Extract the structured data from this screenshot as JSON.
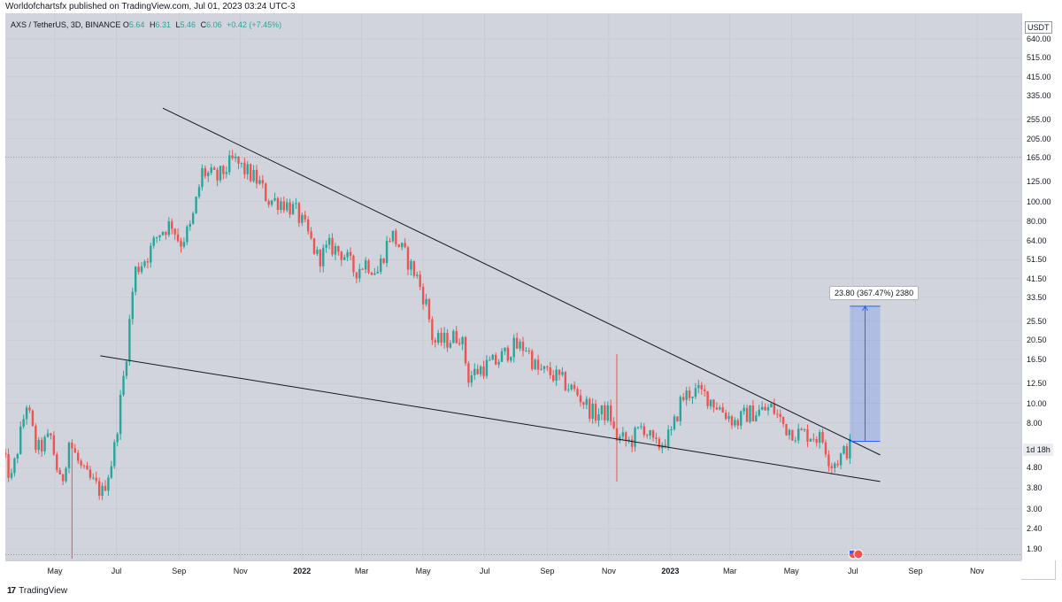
{
  "publish_line": "Worldofchartsfx published on TradingView.com, Jul 01, 2023 03:24 UTC-3",
  "brand": {
    "logo": "17",
    "name": "TradingView"
  },
  "legend": {
    "symbol": "AXS / TetherUS, 3D, BINANCE",
    "open_label": "O",
    "open": "5.64",
    "high_label": "H",
    "high": "6.31",
    "low_label": "L",
    "low": "5.46",
    "close_label": "C",
    "close": "6.06",
    "change": "+0.42 (+7.45%)"
  },
  "currency": "USDT",
  "countdown": "1d 18h",
  "measure_label": "23.80 (367.47%) 2380",
  "colors": {
    "up": "#26a69a",
    "down": "#ef5350",
    "background": "#d1d4dc",
    "measure": "#2962ff"
  },
  "chart_data": {
    "type": "candlestick",
    "symbol": "AXS / TetherUS",
    "interval": "3D",
    "exchange": "BINANCE",
    "yscale": "log",
    "ylim": [
      1.7,
      800
    ],
    "y_ticks": [
      "640.00",
      "515.00",
      "415.00",
      "335.00",
      "255.00",
      "205.00",
      "165.00",
      "125.00",
      "100.00",
      "80.00",
      "64.00",
      "51.50",
      "41.50",
      "33.50",
      "25.50",
      "20.50",
      "16.50",
      "12.50",
      "10.00",
      "8.00",
      "6.00",
      "4.80",
      "3.80",
      "3.00",
      "2.40",
      "1.90"
    ],
    "x_ticks": [
      {
        "label": "May",
        "date": "2021-05-01",
        "bold": false
      },
      {
        "label": "Jul",
        "date": "2021-07-01",
        "bold": false
      },
      {
        "label": "Sep",
        "date": "2021-09-01",
        "bold": false
      },
      {
        "label": "Nov",
        "date": "2021-11-01",
        "bold": false
      },
      {
        "label": "2022",
        "date": "2022-01-01",
        "bold": true
      },
      {
        "label": "Mar",
        "date": "2022-03-01",
        "bold": false
      },
      {
        "label": "May",
        "date": "2022-05-01",
        "bold": false
      },
      {
        "label": "Jul",
        "date": "2022-07-01",
        "bold": false
      },
      {
        "label": "Sep",
        "date": "2022-09-01",
        "bold": false
      },
      {
        "label": "Nov",
        "date": "2022-11-01",
        "bold": false
      },
      {
        "label": "2023",
        "date": "2023-01-01",
        "bold": true
      },
      {
        "label": "Mar",
        "date": "2023-03-01",
        "bold": false
      },
      {
        "label": "May",
        "date": "2023-05-01",
        "bold": false
      },
      {
        "label": "Jul",
        "date": "2023-07-01",
        "bold": false
      },
      {
        "label": "Sep",
        "date": "2023-09-01",
        "bold": false
      },
      {
        "label": "Nov",
        "date": "2023-11-01",
        "bold": false
      }
    ],
    "price_path": [
      [
        "2021-03-10",
        6.0
      ],
      [
        "2021-03-22",
        4.2
      ],
      [
        "2021-04-06",
        10.0
      ],
      [
        "2021-04-16",
        5.8
      ],
      [
        "2021-04-30",
        6.8
      ],
      [
        "2021-05-10",
        3.8
      ],
      [
        "2021-05-18",
        6.5
      ],
      [
        "2021-06-01",
        4.5
      ],
      [
        "2021-06-20",
        3.6
      ],
      [
        "2021-07-01",
        5.5
      ],
      [
        "2021-07-13",
        16.0
      ],
      [
        "2021-07-22",
        45.0
      ],
      [
        "2021-08-05",
        55.0
      ],
      [
        "2021-08-15",
        70.0
      ],
      [
        "2021-08-28",
        78.0
      ],
      [
        "2021-09-05",
        62.0
      ],
      [
        "2021-09-16",
        75.0
      ],
      [
        "2021-09-27",
        140.0
      ],
      [
        "2021-10-12",
        130.0
      ],
      [
        "2021-10-28",
        160.0
      ],
      [
        "2021-11-10",
        140.0
      ],
      [
        "2021-11-22",
        125.0
      ],
      [
        "2021-12-01",
        102.0
      ],
      [
        "2021-12-15",
        100.0
      ],
      [
        "2021-12-28",
        90.0
      ],
      [
        "2022-01-08",
        72.0
      ],
      [
        "2022-01-20",
        52.0
      ],
      [
        "2022-02-01",
        60.0
      ],
      [
        "2022-02-14",
        55.0
      ],
      [
        "2022-02-25",
        45.0
      ],
      [
        "2022-03-08",
        50.0
      ],
      [
        "2022-03-20",
        45.0
      ],
      [
        "2022-04-02",
        70.0
      ],
      [
        "2022-04-15",
        55.0
      ],
      [
        "2022-04-28",
        42.0
      ],
      [
        "2022-05-08",
        30.0
      ],
      [
        "2022-05-14",
        20.0
      ],
      [
        "2022-05-28",
        20.5
      ],
      [
        "2022-06-10",
        22.0
      ],
      [
        "2022-06-18",
        13.5
      ],
      [
        "2022-07-01",
        15.0
      ],
      [
        "2022-07-15",
        16.0
      ],
      [
        "2022-08-01",
        19.0
      ],
      [
        "2022-08-14",
        19.0
      ],
      [
        "2022-08-25",
        14.5
      ],
      [
        "2022-09-08",
        14.0
      ],
      [
        "2022-09-22",
        12.5
      ],
      [
        "2022-10-05",
        11.0
      ],
      [
        "2022-10-20",
        8.8
      ],
      [
        "2022-11-05",
        9.0
      ],
      [
        "2022-11-10",
        6.8
      ],
      [
        "2022-11-25",
        6.4
      ],
      [
        "2022-12-08",
        7.8
      ],
      [
        "2022-12-20",
        6.0
      ],
      [
        "2023-01-05",
        7.0
      ],
      [
        "2023-01-15",
        10.5
      ],
      [
        "2023-01-25",
        11.5
      ],
      [
        "2023-02-08",
        11.0
      ],
      [
        "2023-02-22",
        9.5
      ],
      [
        "2023-03-10",
        8.0
      ],
      [
        "2023-03-20",
        8.8
      ],
      [
        "2023-04-05",
        9.2
      ],
      [
        "2023-04-15",
        9.5
      ],
      [
        "2023-04-28",
        7.6
      ],
      [
        "2023-05-10",
        7.1
      ],
      [
        "2023-05-25",
        7.0
      ],
      [
        "2023-06-05",
        6.5
      ],
      [
        "2023-06-12",
        5.0
      ],
      [
        "2023-06-20",
        5.3
      ],
      [
        "2023-06-30",
        6.06
      ]
    ],
    "spikes": [
      {
        "date": "2021-05-19",
        "low": 1.7
      },
      {
        "date": "2022-11-09",
        "high": 17.5,
        "low": 4.1
      },
      {
        "date": "2023-06-10",
        "low": 4.6
      }
    ],
    "trendlines": [
      {
        "name": "upper",
        "from": [
          "2021-08-16",
          290
        ],
        "to": [
          "2023-07-28",
          5.55
        ]
      },
      {
        "name": "lower",
        "from": [
          "2021-06-15",
          17.2
        ],
        "to": [
          "2023-07-28",
          4.1
        ]
      }
    ],
    "reference_line": {
      "price": 166
    },
    "measurement": {
      "from_date": "2023-06-28",
      "to_date": "2023-07-28",
      "from_price": 6.48,
      "to_price": 30.28,
      "change": 23.8,
      "percent": 367.47,
      "ticks": 2380
    }
  }
}
